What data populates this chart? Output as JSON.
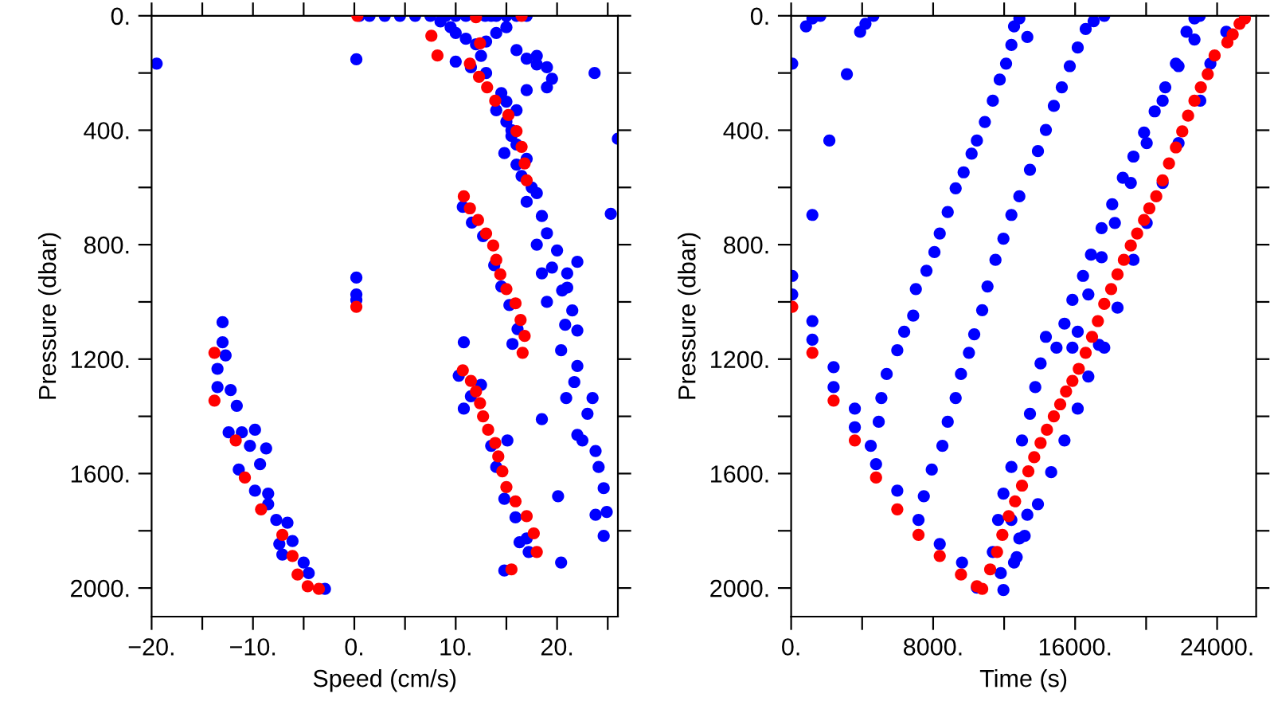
{
  "chart_data": [
    {
      "type": "scatter",
      "xlabel": "Speed (cm/s)",
      "ylabel": "Pressure (dbar)",
      "marker": "circle",
      "grid": false,
      "legend": false,
      "xlim": [
        -20,
        26
      ],
      "ylim": [
        2100,
        0
      ],
      "xticks": [
        {
          "value": -20,
          "label": "−20."
        },
        {
          "value": -15,
          "label": null
        },
        {
          "value": -10,
          "label": "−10."
        },
        {
          "value": -5,
          "label": null
        },
        {
          "value": 0,
          "label": "0."
        },
        {
          "value": 5,
          "label": null
        },
        {
          "value": 10,
          "label": "10."
        },
        {
          "value": 15,
          "label": null
        },
        {
          "value": 20,
          "label": "20."
        },
        {
          "value": 25,
          "label": null
        }
      ],
      "yticks": [
        {
          "value": 0,
          "label": "0."
        },
        {
          "value": 200,
          "label": null
        },
        {
          "value": 400,
          "label": "400."
        },
        {
          "value": 600,
          "label": null
        },
        {
          "value": 800,
          "label": "800."
        },
        {
          "value": 1000,
          "label": null
        },
        {
          "value": 1200,
          "label": "1200."
        },
        {
          "value": 1400,
          "label": null
        },
        {
          "value": 1600,
          "label": "1600."
        },
        {
          "value": 1800,
          "label": null
        },
        {
          "value": 2000,
          "label": "2000."
        }
      ],
      "series": [
        {
          "color": "#0000ff",
          "x": [
            0.5,
            1.5,
            3,
            4.5,
            6,
            7.5,
            9,
            10,
            11,
            12.9,
            13.5,
            14,
            15,
            16,
            17,
            -19.5,
            23.7,
            26.0,
            25.3,
            0.2,
            0.2,
            0.2,
            0.2,
            8.5,
            9.5,
            10,
            11,
            12,
            13,
            14,
            15,
            16,
            17,
            18,
            19,
            19.5,
            19,
            18,
            12.5,
            11.5,
            13,
            10,
            14.5,
            15,
            16,
            17,
            14,
            15,
            15.5,
            14.8,
            16,
            17,
            16.5,
            17.5,
            18,
            17,
            16,
            15.5,
            18.5,
            19,
            18,
            20,
            19.5,
            21,
            20.5,
            19,
            21.5,
            20.8,
            22,
            21,
            22,
            18.5,
            20.4,
            22.0,
            20.9,
            23.0,
            22.0,
            22.5,
            23.8,
            24.1,
            24.6,
            23.8,
            24.6,
            24.9,
            23.5,
            21.7,
            20.1,
            20.4,
            18.5,
            10.8,
            10.3,
            10.8,
            11.5,
            12.5,
            13.5,
            14.0,
            15.1,
            14.8,
            15.9,
            17.0,
            17.2,
            14.8,
            16.3,
            10.7,
            11.6,
            12.7,
            13.8,
            14.5,
            15.3,
            16.1,
            15.6,
            -13.0,
            -13.0,
            -12.7,
            -13.5,
            -13.5,
            -12.2,
            -11.6,
            -12.4,
            -11.1,
            -9.8,
            -10.3,
            -8.7,
            -9.3,
            -11.4,
            -9.8,
            -8.5,
            -8.5,
            -7.7,
            -6.6,
            -7.4,
            -6.1,
            -5.0,
            -4.5,
            -2.9,
            -7.1
          ],
          "values": [
            0,
            0,
            0,
            0,
            0,
            0,
            0,
            0,
            0,
            0,
            0,
            0,
            0,
            0,
            0,
            167,
            200,
            430,
            692,
            152,
            915,
            974,
            993,
            20,
            40,
            60,
            80,
            100,
            90,
            60,
            40,
            120,
            150,
            140,
            180,
            220,
            250,
            170,
            140,
            180,
            200,
            160,
            270,
            300,
            330,
            260,
            330,
            370,
            420,
            480,
            450,
            500,
            560,
            600,
            620,
            650,
            520,
            400,
            700,
            760,
            800,
            820,
            880,
            900,
            960,
            1000,
            1030,
            1080,
            1100,
            950,
            860,
            900,
            1169,
            1224,
            1336,
            1391,
            1465,
            1484,
            1521,
            1577,
            1651,
            1744,
            1818,
            1734,
            1336,
            1280,
            1679,
            1911,
            1410,
            1141,
            1258,
            1373,
            1330,
            1290,
            1503,
            1577,
            1484,
            1688,
            1753,
            1827,
            1874,
            1939,
            1840,
            668,
            723,
            770,
            872,
            946,
            1011,
            1095,
            1147,
            1071,
            1141,
            1187,
            1234,
            1298,
            1308,
            1363,
            1456,
            1456,
            1447,
            1503,
            1512,
            1567,
            1586,
            1660,
            1670,
            1707,
            1762,
            1772,
            1846,
            1836,
            1911,
            1948,
            2003,
            1883
          ]
        },
        {
          "color": "#ff0000",
          "x": [
            0.3,
            12.0,
            16.5,
            7.6,
            8.2,
            12.4,
            11.4,
            12.3,
            13.1,
            13.9,
            15.2,
            16.0,
            16.5,
            16.8,
            17.0,
            10.8,
            11.4,
            12.2,
            13.0,
            13.7,
            14.0,
            14.4,
            15.0,
            15.9,
            16.4,
            16.8,
            16.6,
            0.2,
            -13.8,
            -13.8,
            -11.7,
            -10.8,
            -9.2,
            -7.1,
            -6.1,
            -5.6,
            -4.6,
            -3.5,
            10.7,
            11.5,
            12.0,
            12.4,
            12.7,
            13.2,
            13.9,
            14.2,
            14.6,
            15.0,
            15.9,
            17.0,
            17.7,
            18.0,
            15.5
          ],
          "values": [
            0,
            5,
            0,
            70,
            139,
            96,
            167,
            213,
            250,
            297,
            347,
            403,
            458,
            516,
            575,
            631,
            673,
            714,
            761,
            803,
            853,
            904,
            955,
            1005,
            1063,
            1119,
            1178,
            1017,
            1178,
            1345,
            1484,
            1614,
            1725,
            1814,
            1888,
            1953,
            1994,
            2003,
            1239,
            1276,
            1313,
            1354,
            1400,
            1447,
            1493,
            1540,
            1592,
            1647,
            1697,
            1749,
            1809,
            1874,
            1935
          ]
        }
      ]
    },
    {
      "type": "scatter",
      "xlabel": "Time (s)",
      "ylabel": "Pressure (dbar)",
      "marker": "circle",
      "grid": false,
      "legend": false,
      "xlim": [
        0,
        26200
      ],
      "ylim": [
        2100,
        0
      ],
      "xticks": [
        {
          "value": 0,
          "label": "0."
        },
        {
          "value": 4000,
          "label": null
        },
        {
          "value": 8000,
          "label": "8000."
        },
        {
          "value": 12000,
          "label": null
        },
        {
          "value": 16000,
          "label": "16000."
        },
        {
          "value": 20000,
          "label": null
        },
        {
          "value": 24000,
          "label": "24000."
        }
      ],
      "yticks": [
        {
          "value": 0,
          "label": "0."
        },
        {
          "value": 200,
          "label": null
        },
        {
          "value": 400,
          "label": "400."
        },
        {
          "value": 600,
          "label": null
        },
        {
          "value": 800,
          "label": "800."
        },
        {
          "value": 1000,
          "label": null
        },
        {
          "value": 1200,
          "label": "1200."
        },
        {
          "value": 1400,
          "label": null
        },
        {
          "value": 1600,
          "label": "1600."
        },
        {
          "value": 1800,
          "label": null
        },
        {
          "value": 2000,
          "label": "2000."
        }
      ],
      "series": [
        {
          "color": "#0000ff",
          "x": [
            60,
            60,
            60,
            837,
            1196,
            1645,
            1196,
            1196,
            1196,
            3140,
            2153,
            3887,
            4186,
            4635,
            2392,
            2392,
            3588,
            3588,
            4485,
            4784,
            4934,
            5382,
            5083,
            5980,
            7176,
            8372,
            9628,
            10465,
            11960,
            11810,
            12558,
            12857,
            13306,
            12408,
            5980,
            6369,
            6877,
            7026,
            7624,
            8073,
            8372,
            8821,
            9269,
            9717,
            10166,
            10465,
            10914,
            11362,
            11751,
            12110,
            12409,
            12558,
            12857,
            13306,
            7475,
            7923,
            8522,
            8821,
            9269,
            9568,
            10017,
            10315,
            10764,
            11063,
            11512,
            11960,
            12409,
            12857,
            13455,
            13904,
            14352,
            14801,
            15249,
            15698,
            16146,
            16595,
            17043,
            17641,
            14352,
            14053,
            13754,
            13455,
            13007,
            12409,
            11960,
            11661,
            11362,
            14950,
            15399,
            15847,
            16445,
            16894,
            17492,
            18090,
            18688,
            19286,
            19884,
            20482,
            21080,
            21678,
            22276,
            22724,
            15847,
            16146,
            16744,
            17492,
            18239,
            19136,
            20033,
            20930,
            21827,
            22724,
            23023,
            17641,
            18388,
            19286,
            20033,
            20930,
            21827,
            23050,
            23621,
            24518,
            17342,
            16744,
            16146,
            15399,
            14651,
            13904,
            13156,
            12707
          ],
          "values": [
            167,
            909,
            974,
            37,
            9,
            0,
            696,
            1067,
            1132,
            204,
            436,
            56,
            28,
            0,
            1228,
            1298,
            1373,
            1438,
            1503,
            1567,
            1419,
            1252,
            1336,
            1660,
            1762,
            1846,
            1911,
            1999,
            2007,
            1948,
            1911,
            1827,
            1744,
            1762,
            1169,
            1104,
            1048,
            955,
            891,
            826,
            761,
            686,
            603,
            547,
            482,
            436,
            371,
            297,
            223,
            167,
            102,
            37,
            9,
            74,
            1679,
            1586,
            1503,
            1419,
            1336,
            1252,
            1178,
            1113,
            1029,
            946,
            853,
            779,
            696,
            631,
            538,
            473,
            399,
            315,
            250,
            176,
            111,
            46,
            19,
            0,
            1122,
            1215,
            1298,
            1391,
            1484,
            1577,
            1670,
            1762,
            1874,
            1160,
            1076,
            993,
            909,
            835,
            742,
            659,
            566,
            492,
            408,
            334,
            250,
            167,
            56,
            9,
            1160,
            1104,
            974,
            844,
            724,
            584,
            445,
            297,
            176,
            83,
            0,
            1160,
            1020,
            853,
            724,
            584,
            445,
            297,
            167,
            56,
            1150,
            1261,
            1373,
            1484,
            1595,
            1707,
            1818,
            1892
          ]
        },
        {
          "color": "#ff0000",
          "x": [
            60,
            1196,
            2392,
            3588,
            4784,
            5980,
            7176,
            8372,
            9568,
            10465,
            10764,
            11213,
            11601,
            11900,
            12259,
            12618,
            13007,
            13365,
            13694,
            14053,
            14412,
            14800,
            15159,
            15488,
            15847,
            16206,
            16594,
            16953,
            17282,
            17641,
            18030,
            18388,
            18747,
            19136,
            19495,
            19883,
            20182,
            20571,
            20930,
            21289,
            21678,
            22036,
            22365,
            22724,
            23083,
            23471,
            23860,
            24578,
            24877,
            25266,
            25565
          ],
          "values": [
            1017,
            1178,
            1345,
            1484,
            1614,
            1725,
            1814,
            1888,
            1953,
            1994,
            2003,
            1935,
            1874,
            1814,
            1749,
            1697,
            1642,
            1592,
            1543,
            1493,
            1447,
            1400,
            1358,
            1313,
            1276,
            1234,
            1178,
            1122,
            1067,
            1007,
            955,
            904,
            853,
            803,
            761,
            714,
            673,
            631,
            575,
            516,
            460,
            404,
            349,
            297,
            250,
            204,
            139,
            93,
            65,
            28,
            9
          ]
        }
      ]
    }
  ]
}
